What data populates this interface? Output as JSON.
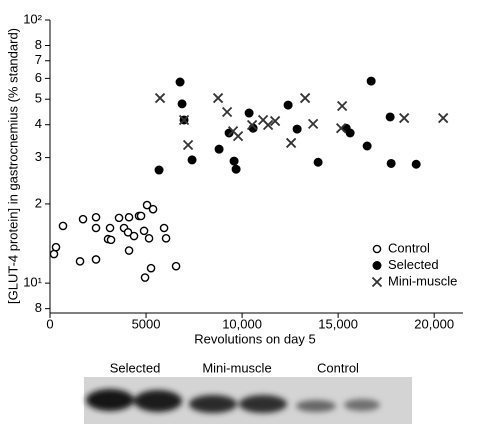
{
  "chart_data": {
    "type": "scatter",
    "xlabel": "Revolutions on day 5",
    "ylabel": "[GLUT-4 protein] in gastrocnemius (% standard)",
    "xlim": [
      0,
      21500
    ],
    "ylim": [
      7.7,
      100
    ],
    "log_y": true,
    "legend": "lower right",
    "xticks": [
      0,
      5000,
      {
        "value": 10000,
        "label": "10,000"
      },
      {
        "value": 15000,
        "label": "15,000"
      },
      {
        "value": 20000,
        "label": "20,000"
      }
    ],
    "yticks": [
      8,
      {
        "value": 10,
        "label": "10¹"
      },
      {
        "value": 20,
        "label": "2"
      },
      {
        "value": 30,
        "label": "3"
      },
      {
        "value": 40,
        "label": "4"
      },
      {
        "value": 50,
        "label": "5"
      },
      {
        "value": 60,
        "label": "6"
      },
      {
        "value": 70,
        "label": "7"
      },
      {
        "value": 80,
        "label": "8"
      },
      {
        "value": 100,
        "label": "10²"
      }
    ],
    "series": [
      {
        "name": "Control",
        "marker": "open-circle",
        "color": "#000000",
        "x": [
          208,
          313,
          677,
          1563,
          1719,
          2396,
          2396,
          2396,
          3021,
          3125,
          3177,
          3594,
          3854,
          4063,
          4115,
          4115,
          4375,
          4635,
          4740,
          4896,
          4948,
          5052,
          5156,
          5260,
          5365,
          5938,
          6042,
          6563
        ],
        "values": [
          12.9,
          13.7,
          16.5,
          12.1,
          17.5,
          17.8,
          16.2,
          12.3,
          14.7,
          16.2,
          14.6,
          17.7,
          16.2,
          15.6,
          17.8,
          13.3,
          15.1,
          18.0,
          18.0,
          15.8,
          10.5,
          19.8,
          14.8,
          11.4,
          19.1,
          16.2,
          14.8,
          11.6
        ]
      },
      {
        "name": "Selected",
        "marker": "filled-circle",
        "color": "#000000",
        "x": [
          5677,
          6771,
          6875,
          6979,
          7396,
          8802,
          9323,
          9583,
          9688,
          10365,
          10573,
          12396,
          12865,
          13958,
          15417,
          15625,
          16510,
          16719,
          17708,
          17760,
          19063
        ],
        "values": [
          26.9,
          58.1,
          48.0,
          41.7,
          29.4,
          32.3,
          37.2,
          29.1,
          27.1,
          44.3,
          38.8,
          47.5,
          38.5,
          28.8,
          38.8,
          37.2,
          33.2,
          58.6,
          42.8,
          28.5,
          28.3
        ]
      },
      {
        "name": "Mini-muscle",
        "marker": "x",
        "color": "#333333",
        "x": [
          5729,
          6979,
          7188,
          8750,
          9219,
          9531,
          9792,
          10521,
          11094,
          11354,
          11719,
          12552,
          13281,
          13698,
          15156,
          15208,
          18438,
          20469
        ],
        "values": [
          50.5,
          41.7,
          33.5,
          50.5,
          44.7,
          37.8,
          36.2,
          39.9,
          41.7,
          39.9,
          41.3,
          34.1,
          50.5,
          40.3,
          38.8,
          47.1,
          42.4,
          42.4
        ]
      }
    ]
  },
  "blot": {
    "labels": [
      "Selected",
      "Mini-muscle",
      "Control"
    ]
  }
}
